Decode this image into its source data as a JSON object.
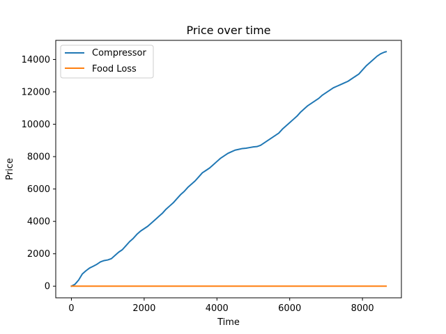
{
  "chart_data": {
    "type": "line",
    "title": "Price over time",
    "xlabel": "Time",
    "ylabel": "Price",
    "xlim": [
      -430,
      9070
    ],
    "ylim": [
      -720,
      15180
    ],
    "xticks": [
      0,
      2000,
      4000,
      6000,
      8000
    ],
    "yticks": [
      0,
      2000,
      4000,
      6000,
      8000,
      10000,
      12000,
      14000
    ],
    "grid": false,
    "legend": "top-left",
    "series": [
      {
        "name": "Compressor",
        "color": "#1f77b4",
        "x": [
          0,
          100,
          200,
          300,
          400,
          500,
          600,
          700,
          800,
          900,
          1000,
          1100,
          1200,
          1300,
          1400,
          1500,
          1600,
          1700,
          1800,
          1900,
          2000,
          2100,
          2200,
          2300,
          2400,
          2500,
          2600,
          2700,
          2800,
          2900,
          3000,
          3100,
          3200,
          3300,
          3400,
          3500,
          3600,
          3700,
          3800,
          3900,
          4000,
          4100,
          4200,
          4300,
          4400,
          4500,
          4600,
          4700,
          4800,
          4900,
          5000,
          5100,
          5200,
          5300,
          5400,
          5500,
          5600,
          5700,
          5800,
          5900,
          6000,
          6100,
          6200,
          6300,
          6400,
          6500,
          6600,
          6700,
          6800,
          6900,
          7000,
          7100,
          7200,
          7300,
          7400,
          7500,
          7600,
          7700,
          7800,
          7900,
          8000,
          8100,
          8200,
          8300,
          8400,
          8500,
          8600,
          8650
        ],
        "values": [
          0,
          120,
          380,
          750,
          950,
          1120,
          1230,
          1350,
          1500,
          1580,
          1620,
          1700,
          1900,
          2100,
          2250,
          2500,
          2750,
          2950,
          3200,
          3400,
          3550,
          3700,
          3900,
          4100,
          4300,
          4500,
          4750,
          4950,
          5150,
          5400,
          5650,
          5850,
          6100,
          6300,
          6500,
          6750,
          7000,
          7150,
          7300,
          7500,
          7700,
          7900,
          8050,
          8200,
          8300,
          8400,
          8450,
          8500,
          8520,
          8560,
          8600,
          8620,
          8700,
          8850,
          9000,
          9150,
          9300,
          9450,
          9700,
          9900,
          10100,
          10300,
          10500,
          10750,
          10950,
          11150,
          11300,
          11450,
          11600,
          11800,
          11950,
          12100,
          12250,
          12350,
          12450,
          12550,
          12650,
          12800,
          12950,
          13100,
          13350,
          13600,
          13800,
          14000,
          14200,
          14350,
          14450,
          14480
        ]
      },
      {
        "name": "Food Loss",
        "color": "#ff7f0e",
        "x": [
          0,
          8650
        ],
        "values": [
          0,
          0
        ]
      }
    ]
  }
}
